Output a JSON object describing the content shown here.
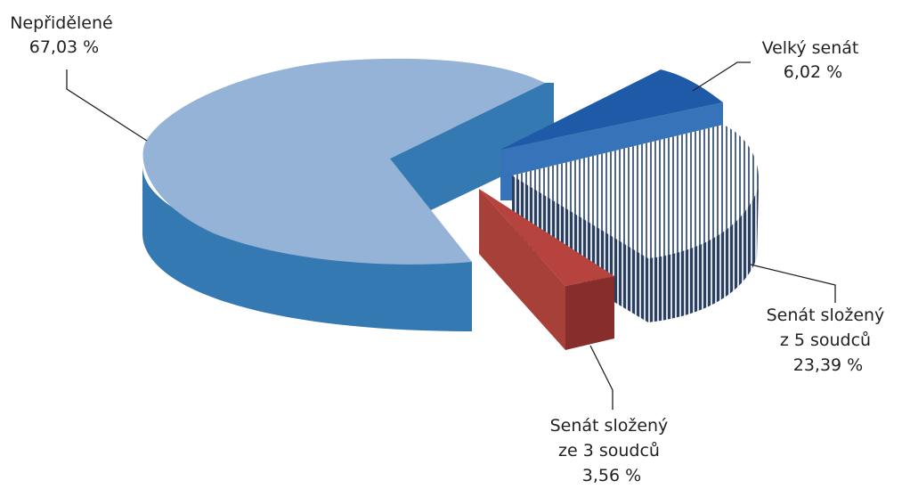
{
  "chart_data": {
    "type": "pie",
    "style": "3d-exploded",
    "slices": [
      {
        "label_lines": [
          "Nepřidělené"
        ],
        "value": 67.03,
        "value_label": "67,03 %",
        "color_top": "#95b3d7",
        "color_side": "#3479b2",
        "pattern": "solid"
      },
      {
        "label_lines": [
          "Velký senát"
        ],
        "value": 6.02,
        "value_label": "6,02 %",
        "color_top": "#1f5aa8",
        "color_side": "#3673b8",
        "pattern": "solid"
      },
      {
        "label_lines": [
          "Senát složený",
          "z 5 soudců"
        ],
        "value": 23.39,
        "value_label": "23,39 %",
        "color_top": "#ffffff",
        "color_side": "#33496a",
        "pattern": "vertical-stripes"
      },
      {
        "label_lines": [
          "Senát složený",
          "ze 3 soudců"
        ],
        "value": 3.56,
        "value_label": "3,56 %",
        "color_top": "#b6403c",
        "color_side": "#8b2c2a",
        "pattern": "solid"
      }
    ]
  }
}
